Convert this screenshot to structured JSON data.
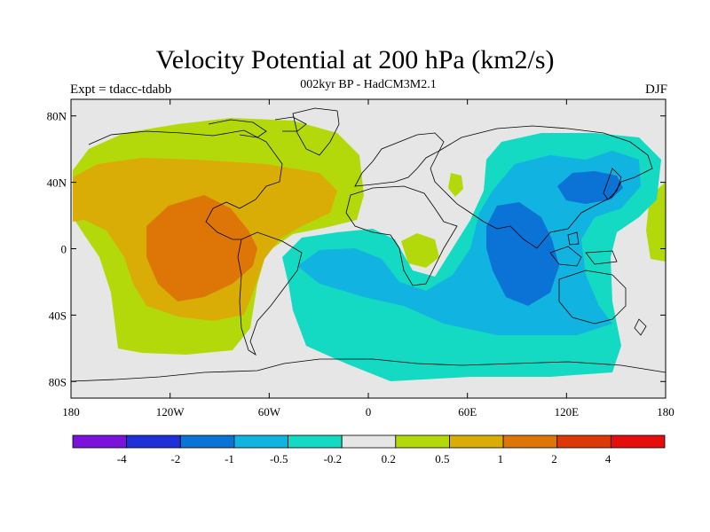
{
  "title": "Velocity Potential at 200 hPa (km2/s)",
  "subtitle": "002kyr BP - HadCM3M2.1",
  "left_label": "Expt = tdacc-tdabb",
  "right_label": "DJF",
  "map": {
    "lon_ticks": [
      "180",
      "120W",
      "60W",
      "0",
      "60E",
      "120E",
      "180"
    ],
    "lat_ticks": [
      "80N",
      "40N",
      "0",
      "40S",
      "80S"
    ]
  },
  "colorbar": {
    "colors": [
      "#7b12dc",
      "#2030d8",
      "#0b72d6",
      "#11b4e0",
      "#14d9c3",
      "#e6e6e6",
      "#b3d90b",
      "#d9ad06",
      "#dd7606",
      "#dc3906",
      "#e60d0d"
    ],
    "labels": [
      "-4",
      "-2",
      "-1",
      "-0.5",
      "-0.2",
      "0.2",
      "0.5",
      "1",
      "2",
      "4"
    ]
  }
}
